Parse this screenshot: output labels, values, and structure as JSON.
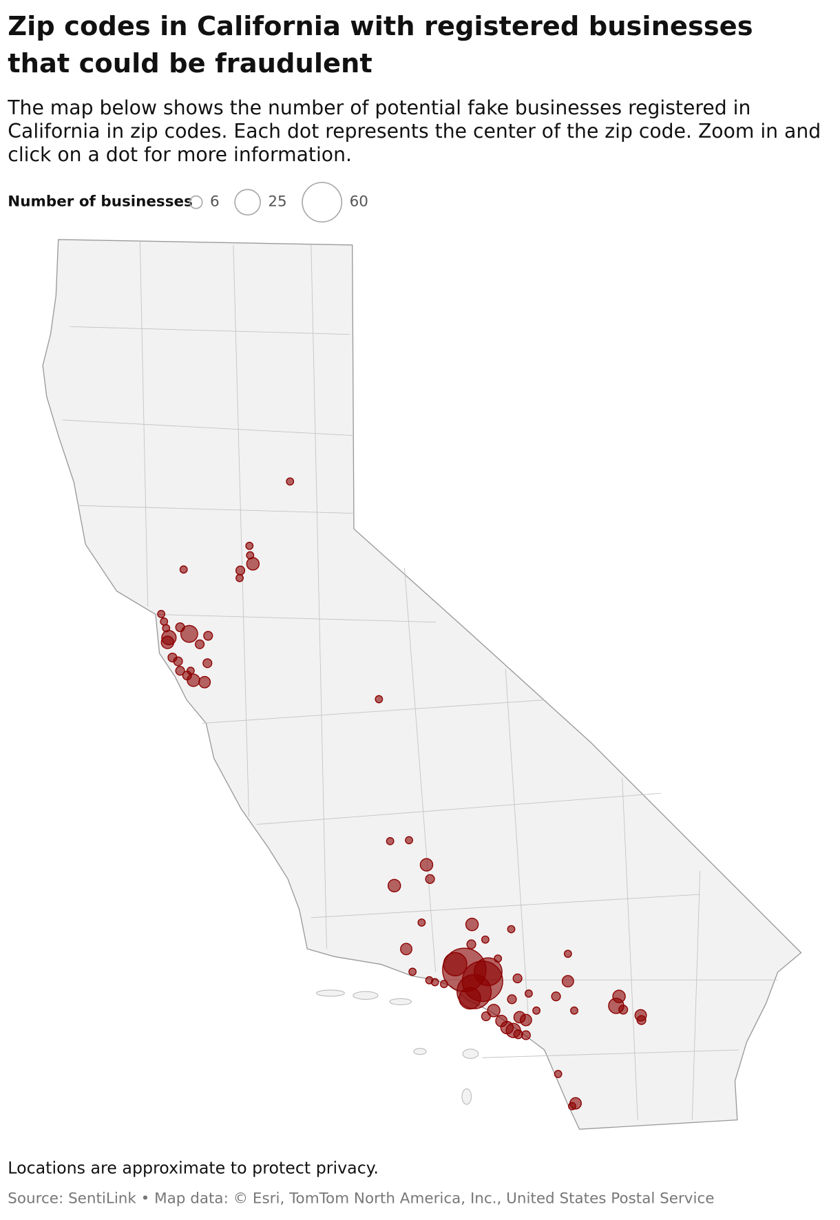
{
  "header": {
    "title": "Zip codes in California with registered businesses that could be fraudulent",
    "subtitle": "The map below shows the number of potential fake businesses registered in California in zip codes. Each dot represents the center of the zip code. Zoom in and click on a dot for more information."
  },
  "legend": {
    "title": "Number of businesses",
    "sizes": [
      6,
      25,
      60
    ]
  },
  "map": {
    "type": "bubble-map",
    "color": "#8b0000",
    "points": [
      {
        "lon": -120.89,
        "lat": 39.46,
        "count": 2
      },
      {
        "lon": -122.41,
        "lat": 38.53,
        "count": 2
      },
      {
        "lon": -121.47,
        "lat": 38.78,
        "count": 2
      },
      {
        "lon": -121.46,
        "lat": 38.68,
        "count": 2
      },
      {
        "lon": -121.42,
        "lat": 38.59,
        "count": 6
      },
      {
        "lon": -121.6,
        "lat": 38.52,
        "count": 3
      },
      {
        "lon": -121.61,
        "lat": 38.44,
        "count": 2
      },
      {
        "lon": -122.73,
        "lat": 38.06,
        "count": 2
      },
      {
        "lon": -122.69,
        "lat": 37.98,
        "count": 2
      },
      {
        "lon": -122.66,
        "lat": 37.91,
        "count": 2
      },
      {
        "lon": -122.46,
        "lat": 37.92,
        "count": 3
      },
      {
        "lon": -122.33,
        "lat": 37.85,
        "count": 11
      },
      {
        "lon": -122.62,
        "lat": 37.81,
        "count": 8
      },
      {
        "lon": -122.64,
        "lat": 37.76,
        "count": 6
      },
      {
        "lon": -122.18,
        "lat": 37.74,
        "count": 3
      },
      {
        "lon": -122.06,
        "lat": 37.83,
        "count": 3
      },
      {
        "lon": -122.57,
        "lat": 37.6,
        "count": 3
      },
      {
        "lon": -122.49,
        "lat": 37.56,
        "count": 3
      },
      {
        "lon": -122.46,
        "lat": 37.46,
        "count": 3
      },
      {
        "lon": -122.31,
        "lat": 37.46,
        "count": 2
      },
      {
        "lon": -122.07,
        "lat": 37.54,
        "count": 3
      },
      {
        "lon": -122.27,
        "lat": 37.36,
        "count": 6
      },
      {
        "lon": -122.11,
        "lat": 37.34,
        "count": 5
      },
      {
        "lon": -122.36,
        "lat": 37.41,
        "count": 3
      },
      {
        "lon": -119.62,
        "lat": 37.16,
        "count": 2
      },
      {
        "lon": -119.46,
        "lat": 35.66,
        "count": 2
      },
      {
        "lon": -119.19,
        "lat": 35.67,
        "count": 2
      },
      {
        "lon": -118.94,
        "lat": 35.41,
        "count": 6
      },
      {
        "lon": -118.89,
        "lat": 35.26,
        "count": 3
      },
      {
        "lon": -119.4,
        "lat": 35.19,
        "count": 6
      },
      {
        "lon": -119.01,
        "lat": 34.8,
        "count": 2
      },
      {
        "lon": -118.29,
        "lat": 34.78,
        "count": 6
      },
      {
        "lon": -117.73,
        "lat": 34.73,
        "count": 2
      },
      {
        "lon": -119.23,
        "lat": 34.52,
        "count": 5
      },
      {
        "lon": -118.3,
        "lat": 34.57,
        "count": 3
      },
      {
        "lon": -118.4,
        "lat": 34.3,
        "count": 73
      },
      {
        "lon": -118.14,
        "lat": 34.18,
        "count": 63
      },
      {
        "lon": -118.26,
        "lat": 34.07,
        "count": 45
      },
      {
        "lon": -118.06,
        "lat": 34.28,
        "count": 30
      },
      {
        "lon": -118.53,
        "lat": 34.36,
        "count": 21
      },
      {
        "lon": -118.32,
        "lat": 34.0,
        "count": 18
      },
      {
        "lon": -119.14,
        "lat": 34.28,
        "count": 2
      },
      {
        "lon": -118.9,
        "lat": 34.19,
        "count": 2
      },
      {
        "lon": -118.82,
        "lat": 34.17,
        "count": 2
      },
      {
        "lon": -118.69,
        "lat": 34.15,
        "count": 2
      },
      {
        "lon": -117.92,
        "lat": 34.42,
        "count": 2
      },
      {
        "lon": -118.1,
        "lat": 34.62,
        "count": 2
      },
      {
        "lon": -117.64,
        "lat": 34.21,
        "count": 3
      },
      {
        "lon": -117.72,
        "lat": 33.99,
        "count": 3
      },
      {
        "lon": -117.48,
        "lat": 34.05,
        "count": 2
      },
      {
        "lon": -116.92,
        "lat": 34.47,
        "count": 2
      },
      {
        "lon": -116.92,
        "lat": 34.18,
        "count": 5
      },
      {
        "lon": -117.09,
        "lat": 34.02,
        "count": 3
      },
      {
        "lon": -116.83,
        "lat": 33.87,
        "count": 2
      },
      {
        "lon": -117.98,
        "lat": 33.87,
        "count": 6
      },
      {
        "lon": -118.09,
        "lat": 33.81,
        "count": 3
      },
      {
        "lon": -117.87,
        "lat": 33.76,
        "count": 5
      },
      {
        "lon": -117.79,
        "lat": 33.69,
        "count": 6
      },
      {
        "lon": -117.7,
        "lat": 33.66,
        "count": 8
      },
      {
        "lon": -117.61,
        "lat": 33.8,
        "count": 5
      },
      {
        "lon": -117.52,
        "lat": 33.77,
        "count": 5
      },
      {
        "lon": -117.63,
        "lat": 33.62,
        "count": 3
      },
      {
        "lon": -117.52,
        "lat": 33.61,
        "count": 3
      },
      {
        "lon": -117.37,
        "lat": 33.87,
        "count": 2
      },
      {
        "lon": -116.19,
        "lat": 34.02,
        "count": 6
      },
      {
        "lon": -116.23,
        "lat": 33.92,
        "count": 9
      },
      {
        "lon": -116.13,
        "lat": 33.88,
        "count": 3
      },
      {
        "lon": -115.88,
        "lat": 33.82,
        "count": 5
      },
      {
        "lon": -115.87,
        "lat": 33.77,
        "count": 3
      },
      {
        "lon": -117.06,
        "lat": 33.2,
        "count": 2
      },
      {
        "lon": -116.81,
        "lat": 32.89,
        "count": 5
      },
      {
        "lon": -116.86,
        "lat": 32.86,
        "count": 2
      }
    ]
  },
  "footer": {
    "note": "Locations are approximate to protect privacy.",
    "source": "Source: SentiLink • Map data: © Esri, TomTom North America, Inc., United States Postal Service"
  }
}
